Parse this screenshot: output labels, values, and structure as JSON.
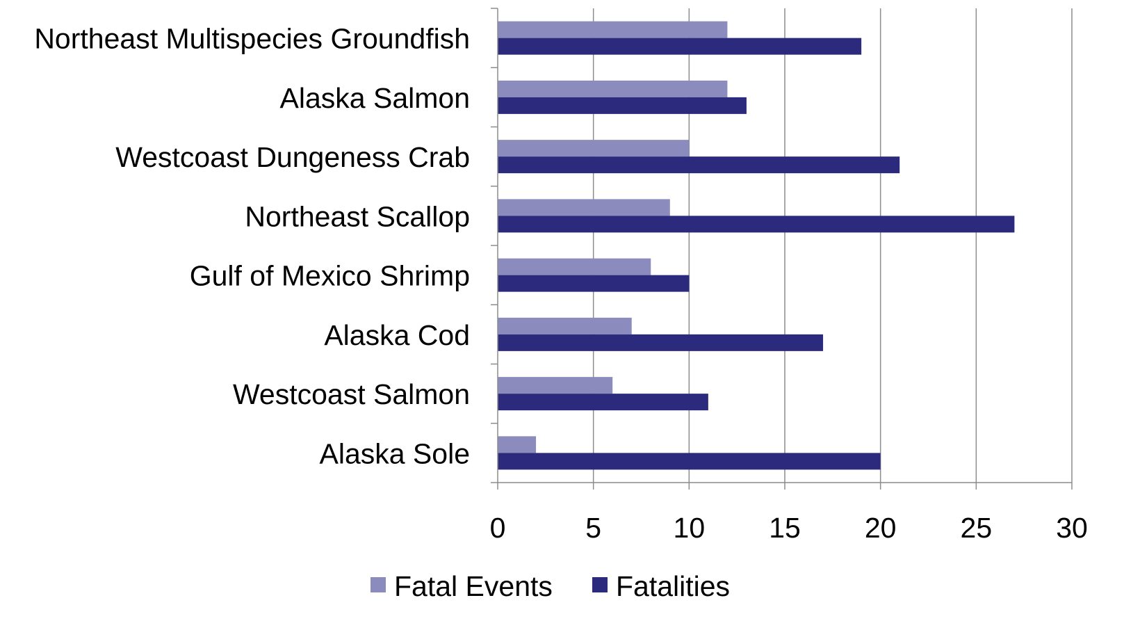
{
  "chart_data": {
    "type": "bar",
    "orientation": "horizontal",
    "title": "",
    "xlabel": "",
    "ylabel": "",
    "categories": [
      "Northeast Multispecies Groundfish",
      "Alaska Salmon",
      "Westcoast Dungeness Crab",
      "Northeast Scallop",
      "Gulf of Mexico Shrimp",
      "Alaska Cod",
      "Westcoast Salmon",
      "Alaska Sole"
    ],
    "series": [
      {
        "name": "Fatal Events",
        "color": "#8B8BBE",
        "values": [
          12,
          12,
          10,
          9,
          8,
          7,
          6,
          2
        ]
      },
      {
        "name": "Fatalities",
        "color": "#2B2A7C",
        "values": [
          19,
          13,
          21,
          27,
          10,
          17,
          11,
          20
        ]
      }
    ],
    "xlim": [
      0,
      30
    ],
    "xticks": [
      "0",
      "5",
      "10",
      "15",
      "20",
      "25",
      "30"
    ],
    "grid": "vertical",
    "legend_position": "bottom"
  }
}
